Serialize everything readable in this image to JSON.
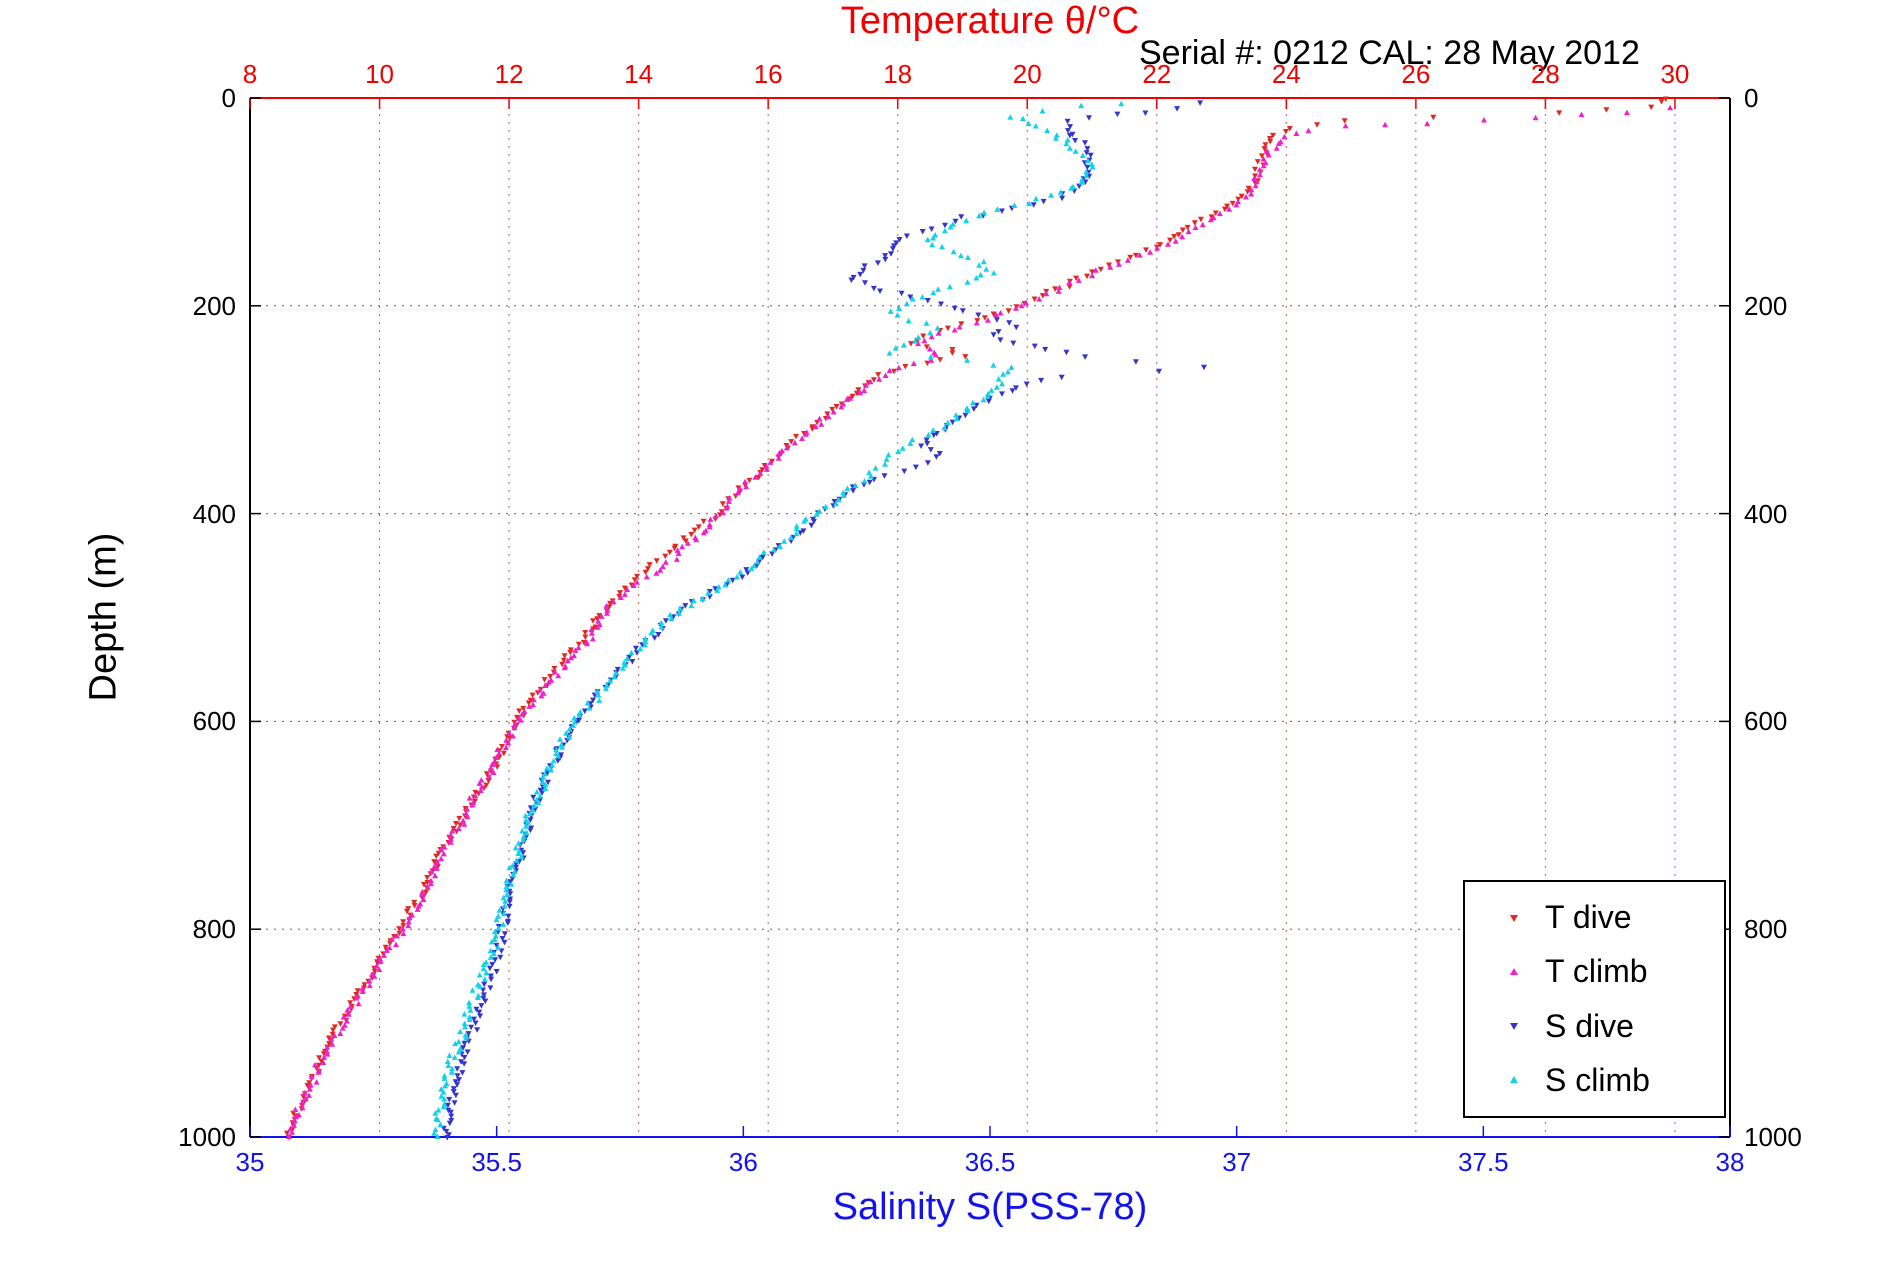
{
  "chart_data": {
    "type": "scatter",
    "title": "Temperature θ/°C",
    "subtitle": "Serial #: 0212  CAL: 28 May 2012",
    "x_top_axis": {
      "label": "Temperature θ/°C",
      "color": "#f20000",
      "range": [
        8,
        30.85
      ],
      "ticks": [
        8,
        10,
        12,
        14,
        16,
        18,
        20,
        22,
        24,
        26,
        28,
        30
      ]
    },
    "x_bottom_axis": {
      "label": "Salinity S(PSS-78)",
      "color": "#1212ee",
      "range": [
        35,
        38
      ],
      "ticks": [
        35,
        35.5,
        36,
        36.5,
        37,
        37.5,
        38
      ]
    },
    "y_axis": {
      "label": "Depth (m)",
      "color": "#000000",
      "range": [
        0,
        1000
      ],
      "ticks": [
        0,
        200,
        400,
        600,
        800,
        1000
      ],
      "reversed": true
    },
    "grid": {
      "vertical_color": "#cc5555",
      "horizontal_color": "#606060",
      "style": "dotted"
    },
    "legend": {
      "position": "lower right",
      "entries": [
        "T dive",
        "T climb",
        "S dive",
        "S climb"
      ]
    },
    "series": [
      {
        "name": "T dive",
        "axis": "top",
        "color": "#e32822",
        "marker": "triangle-down",
        "points": [
          [
            0,
            29.9
          ],
          [
            8,
            29.6
          ],
          [
            14,
            28.2
          ],
          [
            18,
            26.3
          ],
          [
            22,
            24.9
          ],
          [
            28,
            24.1
          ],
          [
            35,
            23.8
          ],
          [
            45,
            23.7
          ],
          [
            60,
            23.6
          ],
          [
            75,
            23.55
          ],
          [
            90,
            23.45
          ],
          [
            100,
            23.2
          ],
          [
            110,
            22.9
          ],
          [
            120,
            22.6
          ],
          [
            130,
            22.35
          ],
          [
            140,
            22.1
          ],
          [
            150,
            21.7
          ],
          [
            160,
            21.3
          ],
          [
            170,
            20.9
          ],
          [
            180,
            20.6
          ],
          [
            190,
            20.2
          ],
          [
            200,
            19.8
          ],
          [
            210,
            19.4
          ],
          [
            220,
            18.8
          ],
          [
            228,
            18.4
          ],
          [
            235,
            18.2
          ],
          [
            242,
            18.8
          ],
          [
            248,
            19.0
          ],
          [
            255,
            18.4
          ],
          [
            262,
            17.9
          ],
          [
            270,
            17.6
          ],
          [
            280,
            17.4
          ],
          [
            290,
            17.2
          ],
          [
            300,
            17.0
          ],
          [
            315,
            16.7
          ],
          [
            330,
            16.4
          ],
          [
            345,
            16.1
          ],
          [
            360,
            15.9
          ],
          [
            375,
            15.6
          ],
          [
            390,
            15.35
          ],
          [
            400,
            15.2
          ],
          [
            415,
            14.9
          ],
          [
            430,
            14.6
          ],
          [
            445,
            14.3
          ],
          [
            460,
            14.0
          ],
          [
            475,
            13.75
          ],
          [
            490,
            13.5
          ],
          [
            500,
            13.4
          ],
          [
            515,
            13.2
          ],
          [
            530,
            13.0
          ],
          [
            545,
            12.8
          ],
          [
            560,
            12.6
          ],
          [
            575,
            12.4
          ],
          [
            590,
            12.2
          ],
          [
            600,
            12.1
          ],
          [
            620,
            11.95
          ],
          [
            640,
            11.8
          ],
          [
            660,
            11.6
          ],
          [
            680,
            11.4
          ],
          [
            700,
            11.2
          ],
          [
            720,
            11.0
          ],
          [
            740,
            10.85
          ],
          [
            760,
            10.7
          ],
          [
            780,
            10.5
          ],
          [
            800,
            10.3
          ],
          [
            820,
            10.1
          ],
          [
            840,
            9.9
          ],
          [
            860,
            9.7
          ],
          [
            880,
            9.5
          ],
          [
            900,
            9.3
          ],
          [
            920,
            9.15
          ],
          [
            940,
            9.0
          ],
          [
            960,
            8.85
          ],
          [
            980,
            8.7
          ],
          [
            1000,
            8.6
          ]
        ]
      },
      {
        "name": "T climb",
        "axis": "top",
        "color": "#ee22c8",
        "marker": "triangle-up",
        "points": [
          [
            10,
            29.9
          ],
          [
            14,
            29.3
          ],
          [
            17,
            28.6
          ],
          [
            20,
            27.8
          ],
          [
            22,
            27.0
          ],
          [
            24,
            26.2
          ],
          [
            26,
            25.5
          ],
          [
            28,
            24.9
          ],
          [
            31,
            24.4
          ],
          [
            35,
            24.1
          ],
          [
            42,
            23.9
          ],
          [
            55,
            23.7
          ],
          [
            70,
            23.6
          ],
          [
            85,
            23.5
          ],
          [
            100,
            23.3
          ],
          [
            115,
            22.9
          ],
          [
            130,
            22.5
          ],
          [
            145,
            22.0
          ],
          [
            160,
            21.4
          ],
          [
            175,
            20.8
          ],
          [
            190,
            20.3
          ],
          [
            200,
            19.9
          ],
          [
            210,
            19.5
          ],
          [
            220,
            19.0
          ],
          [
            230,
            18.5
          ],
          [
            238,
            18.3
          ],
          [
            245,
            18.6
          ],
          [
            252,
            18.5
          ],
          [
            260,
            18.0
          ],
          [
            270,
            17.7
          ],
          [
            282,
            17.45
          ],
          [
            295,
            17.15
          ],
          [
            310,
            16.85
          ],
          [
            325,
            16.55
          ],
          [
            340,
            16.25
          ],
          [
            355,
            16.0
          ],
          [
            370,
            15.7
          ],
          [
            385,
            15.45
          ],
          [
            400,
            15.25
          ],
          [
            420,
            14.95
          ],
          [
            440,
            14.6
          ],
          [
            455,
            14.35
          ],
          [
            470,
            13.9
          ],
          [
            485,
            13.6
          ],
          [
            500,
            13.45
          ],
          [
            520,
            13.25
          ],
          [
            540,
            13.0
          ],
          [
            560,
            12.65
          ],
          [
            580,
            12.4
          ],
          [
            600,
            12.15
          ],
          [
            625,
            11.9
          ],
          [
            650,
            11.7
          ],
          [
            675,
            11.45
          ],
          [
            700,
            11.25
          ],
          [
            725,
            11.0
          ],
          [
            750,
            10.8
          ],
          [
            775,
            10.6
          ],
          [
            800,
            10.35
          ],
          [
            825,
            10.1
          ],
          [
            850,
            9.85
          ],
          [
            875,
            9.6
          ],
          [
            900,
            9.35
          ],
          [
            925,
            9.1
          ],
          [
            950,
            8.95
          ],
          [
            975,
            8.75
          ],
          [
            1000,
            8.6
          ]
        ]
      },
      {
        "name": "S dive",
        "axis": "bottom",
        "color": "#3535cd",
        "marker": "triangle-down",
        "points": [
          [
            5,
            36.93
          ],
          [
            10,
            36.88
          ],
          [
            16,
            36.75
          ],
          [
            22,
            36.66
          ],
          [
            30,
            36.65
          ],
          [
            40,
            36.68
          ],
          [
            55,
            36.7
          ],
          [
            70,
            36.7
          ],
          [
            85,
            36.68
          ],
          [
            95,
            36.64
          ],
          [
            105,
            36.55
          ],
          [
            115,
            36.45
          ],
          [
            125,
            36.38
          ],
          [
            135,
            36.32
          ],
          [
            145,
            36.3
          ],
          [
            155,
            36.28
          ],
          [
            165,
            36.24
          ],
          [
            175,
            36.22
          ],
          [
            185,
            36.28
          ],
          [
            195,
            36.38
          ],
          [
            205,
            36.45
          ],
          [
            212,
            36.52
          ],
          [
            220,
            36.55
          ],
          [
            228,
            36.5
          ],
          [
            235,
            36.55
          ],
          [
            242,
            36.62
          ],
          [
            248,
            36.7
          ],
          [
            253,
            36.8
          ],
          [
            258,
            36.93
          ],
          [
            263,
            36.85
          ],
          [
            268,
            36.65
          ],
          [
            275,
            36.57
          ],
          [
            285,
            36.52
          ],
          [
            295,
            36.48
          ],
          [
            305,
            36.45
          ],
          [
            315,
            36.42
          ],
          [
            325,
            36.38
          ],
          [
            335,
            36.36
          ],
          [
            342,
            36.4
          ],
          [
            350,
            36.38
          ],
          [
            358,
            36.32
          ],
          [
            366,
            36.27
          ],
          [
            375,
            36.23
          ],
          [
            385,
            36.2
          ],
          [
            400,
            36.16
          ],
          [
            415,
            36.12
          ],
          [
            430,
            36.08
          ],
          [
            445,
            36.03
          ],
          [
            460,
            35.99
          ],
          [
            472,
            35.95
          ],
          [
            485,
            35.9
          ],
          [
            500,
            35.86
          ],
          [
            515,
            35.82
          ],
          [
            530,
            35.79
          ],
          [
            545,
            35.76
          ],
          [
            560,
            35.73
          ],
          [
            575,
            35.7
          ],
          [
            590,
            35.68
          ],
          [
            605,
            35.66
          ],
          [
            625,
            35.63
          ],
          [
            645,
            35.61
          ],
          [
            665,
            35.59
          ],
          [
            685,
            35.57
          ],
          [
            705,
            35.56
          ],
          [
            730,
            35.55
          ],
          [
            755,
            35.53
          ],
          [
            780,
            35.52
          ],
          [
            805,
            35.51
          ],
          [
            830,
            35.5
          ],
          [
            855,
            35.48
          ],
          [
            880,
            35.46
          ],
          [
            900,
            35.45
          ],
          [
            920,
            35.43
          ],
          [
            940,
            35.42
          ],
          [
            960,
            35.41
          ],
          [
            980,
            35.4
          ],
          [
            1000,
            35.4
          ]
        ]
      },
      {
        "name": "S climb",
        "axis": "bottom",
        "color": "#12d2e8",
        "marker": "triangle-up",
        "points": [
          [
            5,
            36.76
          ],
          [
            9,
            36.68
          ],
          [
            13,
            36.6
          ],
          [
            18,
            36.55
          ],
          [
            24,
            36.58
          ],
          [
            32,
            36.62
          ],
          [
            45,
            36.66
          ],
          [
            60,
            36.7
          ],
          [
            75,
            36.7
          ],
          [
            88,
            36.66
          ],
          [
            98,
            36.6
          ],
          [
            108,
            36.52
          ],
          [
            118,
            36.45
          ],
          [
            128,
            36.4
          ],
          [
            138,
            36.37
          ],
          [
            148,
            36.42
          ],
          [
            158,
            36.48
          ],
          [
            168,
            36.5
          ],
          [
            178,
            36.45
          ],
          [
            188,
            36.38
          ],
          [
            198,
            36.33
          ],
          [
            206,
            36.3
          ],
          [
            214,
            36.34
          ],
          [
            222,
            36.4
          ],
          [
            230,
            36.36
          ],
          [
            238,
            36.32
          ],
          [
            246,
            36.3
          ],
          [
            254,
            36.45
          ],
          [
            260,
            36.55
          ],
          [
            267,
            36.52
          ],
          [
            275,
            36.53
          ],
          [
            285,
            36.5
          ],
          [
            295,
            36.47
          ],
          [
            305,
            36.44
          ],
          [
            317,
            36.4
          ],
          [
            329,
            36.35
          ],
          [
            341,
            36.31
          ],
          [
            353,
            36.28
          ],
          [
            365,
            36.25
          ],
          [
            377,
            36.21
          ],
          [
            390,
            36.18
          ],
          [
            405,
            36.13
          ],
          [
            420,
            36.1
          ],
          [
            435,
            36.06
          ],
          [
            450,
            36.02
          ],
          [
            465,
            35.97
          ],
          [
            478,
            35.93
          ],
          [
            492,
            35.88
          ],
          [
            506,
            35.84
          ],
          [
            520,
            35.81
          ],
          [
            535,
            35.78
          ],
          [
            550,
            35.75
          ],
          [
            565,
            35.72
          ],
          [
            580,
            35.7
          ],
          [
            595,
            35.67
          ],
          [
            615,
            35.64
          ],
          [
            635,
            35.62
          ],
          [
            655,
            35.6
          ],
          [
            675,
            35.58
          ],
          [
            695,
            35.56
          ],
          [
            715,
            35.55
          ],
          [
            735,
            35.54
          ],
          [
            760,
            35.52
          ],
          [
            785,
            35.51
          ],
          [
            810,
            35.5
          ],
          [
            835,
            35.48
          ],
          [
            860,
            35.46
          ],
          [
            885,
            35.44
          ],
          [
            905,
            35.43
          ],
          [
            925,
            35.41
          ],
          [
            945,
            35.4
          ],
          [
            965,
            35.39
          ],
          [
            985,
            35.38
          ],
          [
            1000,
            35.38
          ]
        ]
      }
    ]
  }
}
